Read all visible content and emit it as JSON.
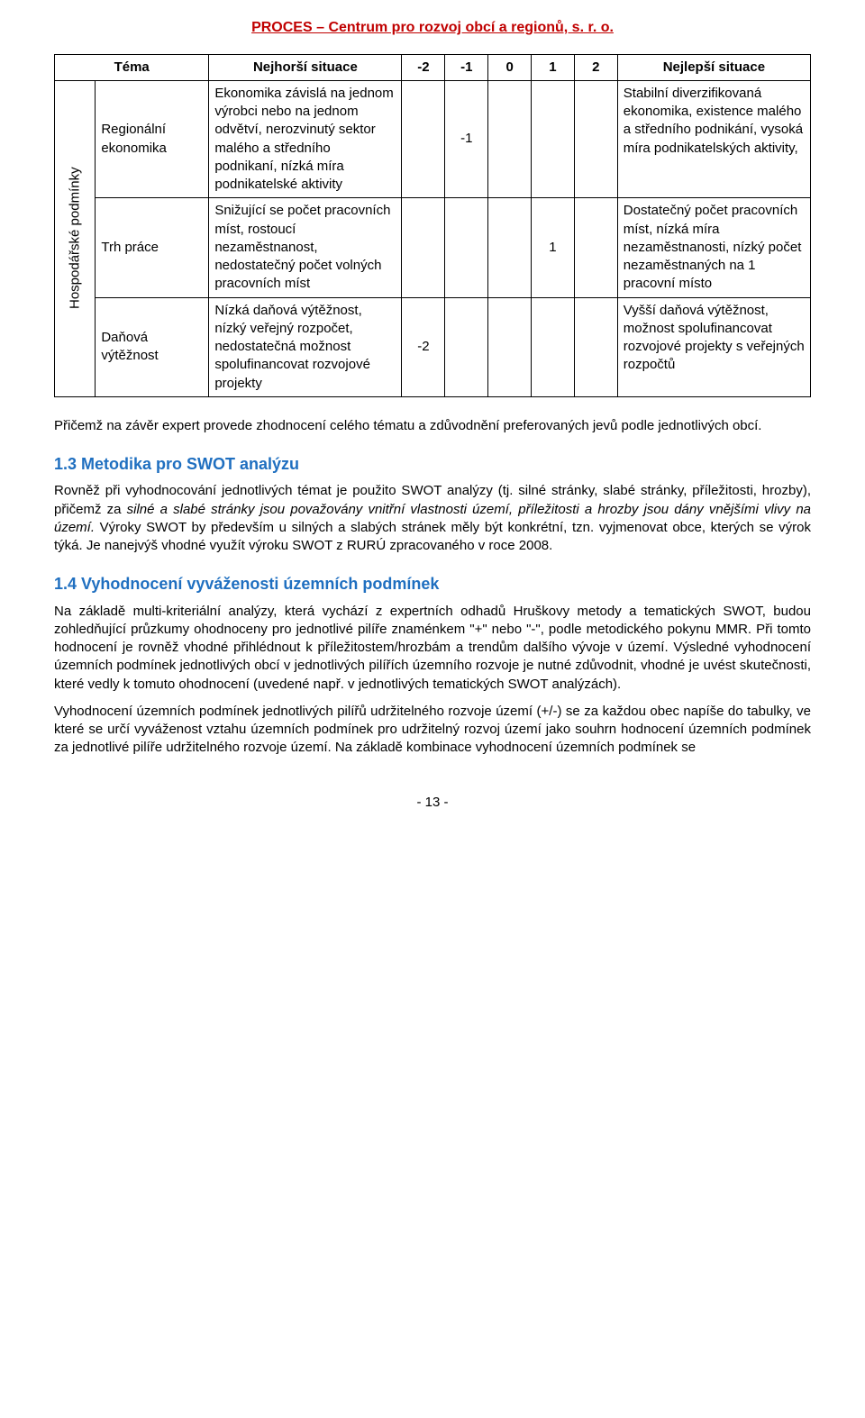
{
  "header": "PROCES – Centrum pro rozvoj obcí a regionů, s. r. o.",
  "table": {
    "head": {
      "tema": "Téma",
      "worst": "Nejhorší situace",
      "c_m2": "-2",
      "c_m1": "-1",
      "c_0": "0",
      "c_1": "1",
      "c_2": "2",
      "best": "Nejlepší situace"
    },
    "group": "Hospodářské podmínky",
    "rows": [
      {
        "sub": "Regionální ekonomika",
        "worst": "Ekonomika závislá na jednom výrobci nebo na jednom odvětví, nerozvinutý sektor malého a středního podnikaní, nízká míra podnikatelské aktivity",
        "m2": "",
        "m1": "-1",
        "z": "",
        "p1": "",
        "p2": "",
        "best": "Stabilní diverzifikovaná ekonomika, existence malého a středního podnikání, vysoká míra podnikatelských aktivity,"
      },
      {
        "sub": "Trh práce",
        "worst": "Snižující se počet pracovních míst, rostoucí nezaměstnanost, nedostatečný počet volných pracovních míst",
        "m2": "",
        "m1": "",
        "z": "",
        "p1": "1",
        "p2": "",
        "best": "Dostatečný počet pracovních míst, nízká míra nezaměstnanosti, nízký počet nezaměstnaných na 1 pracovní místo"
      },
      {
        "sub": "Daňová výtěžnost",
        "worst": "Nízká daňová výtěžnost, nízký veřejný rozpočet, nedostatečná možnost spolufinancovat rozvojové projekty",
        "m2": "-2",
        "m1": "",
        "z": "",
        "p1": "",
        "p2": "",
        "best": "Vyšší daňová výtěžnost, možnost spolufinancovat rozvojové projekty s veřejných rozpočtů"
      }
    ]
  },
  "para1": "Přičemž na závěr expert provede zhodnocení celého tématu a zdůvodnění preferovaných jevů podle jednotlivých obcí.",
  "sec13_title": "1.3  Metodika pro SWOT analýzu",
  "sec13_p1a": "Rovněž při vyhodnocování jednotlivých témat je použito SWOT analýzy (tj. silné stránky, slabé stránky, příležitosti, hrozby), přičemž za ",
  "sec13_p1b": "silné a slabé stránky jsou považovány vnitřní vlastnosti území, příležitosti a hrozby jsou dány vnějšími vlivy na území.",
  "sec13_p1c": " Výroky SWOT by především u silných a slabých stránek měly být konkrétní, tzn. vyjmenovat obce, kterých se výrok týká. Je nanejvýš vhodné využít výroku SWOT z RURÚ zpracovaného v roce 2008.",
  "sec14_title": "1.4  Vyhodnocení vyváženosti územních podmínek",
  "sec14_p1": "Na základě multi-kriteriální analýzy, která vychází z expertních odhadů Hruškovy metody a tematických SWOT, budou zohledňující průzkumy ohodnoceny pro jednotlivé pilíře znaménkem \"+\" nebo \"-\", podle metodického pokynu MMR. Při tomto hodnocení je rovněž vhodné přihlédnout k příležitostem/hrozbám a trendům dalšího vývoje v území. Výsledné vyhodnocení územních podmínek jednotlivých obcí v jednotlivých pilířích územního rozvoje je nutné zdůvodnit, vhodné je uvést skutečnosti, které vedly k tomuto ohodnocení (uvedené např. v jednotlivých tematických SWOT analýzách).",
  "sec14_p2": "Vyhodnocení územních podmínek jednotlivých pilířů udržitelného rozvoje území (+/-) se za každou obec napíše do tabulky, ve které se určí vyváženost vztahu územních podmínek pro udržitelný rozvoj území jako souhrn hodnocení územních podmínek za jednotlivé pilíře udržitelného rozvoje území. Na základě kombinace vyhodnocení územních podmínek se",
  "page_num": "- 13 -"
}
